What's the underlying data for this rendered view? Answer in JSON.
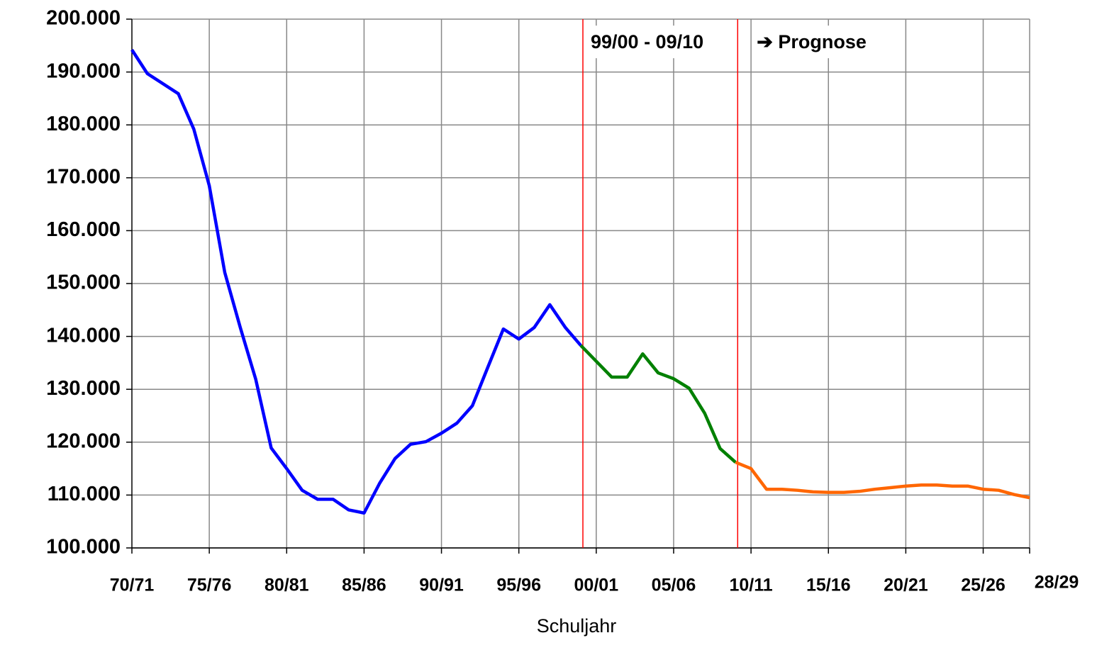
{
  "chart_data": {
    "type": "line",
    "xlabel": "Schuljahr",
    "categories": [
      "70/71",
      null,
      null,
      null,
      null,
      "75/76",
      null,
      null,
      null,
      null,
      "80/81",
      null,
      null,
      null,
      null,
      "85/86",
      null,
      null,
      null,
      null,
      "90/91",
      null,
      null,
      null,
      null,
      "95/96",
      null,
      null,
      null,
      null,
      "00/01",
      null,
      null,
      null,
      null,
      "05/06",
      null,
      null,
      null,
      null,
      "10/11",
      null,
      null,
      null,
      null,
      "15/16",
      null,
      null,
      null,
      null,
      "20/21",
      null,
      null,
      null,
      null,
      "25/26",
      null,
      null,
      "28/29"
    ],
    "series": [
      {
        "color": "#0000ff",
        "values": [
          194200,
          189700,
          187800,
          185900,
          179200,
          168500,
          152100,
          141700,
          131900,
          118900,
          115000,
          110900,
          109200,
          109200,
          107200,
          106600,
          112200,
          116900,
          119600,
          120100,
          121700,
          123600,
          126900,
          134200,
          141400,
          139500,
          141700,
          146000,
          141700,
          138300,
          null,
          null,
          null,
          null,
          null,
          null,
          null,
          null,
          null,
          null,
          null,
          null,
          null,
          null,
          null,
          null,
          null,
          null,
          null,
          null,
          null,
          null,
          null,
          null,
          null,
          null,
          null,
          null,
          null
        ]
      },
      {
        "color": "#008000",
        "values": [
          null,
          null,
          null,
          null,
          null,
          null,
          null,
          null,
          null,
          null,
          null,
          null,
          null,
          null,
          null,
          null,
          null,
          null,
          null,
          null,
          null,
          null,
          null,
          null,
          null,
          null,
          null,
          null,
          null,
          138300,
          135300,
          132300,
          132300,
          136700,
          133100,
          132000,
          130200,
          125500,
          118800,
          116200,
          null,
          null,
          null,
          null,
          null,
          null,
          null,
          null,
          null,
          null,
          null,
          null,
          null,
          null,
          null,
          null,
          null,
          null,
          null
        ]
      },
      {
        "color": "#ff6600",
        "values": [
          null,
          null,
          null,
          null,
          null,
          null,
          null,
          null,
          null,
          null,
          null,
          null,
          null,
          null,
          null,
          null,
          null,
          null,
          null,
          null,
          null,
          null,
          null,
          null,
          null,
          null,
          null,
          null,
          null,
          null,
          null,
          null,
          null,
          null,
          null,
          null,
          null,
          null,
          null,
          116200,
          115000,
          111100,
          111100,
          110900,
          110600,
          110500,
          110500,
          110700,
          111100,
          111400,
          111700,
          111900,
          111900,
          111700,
          111700,
          111100,
          110900,
          110100,
          109500
        ]
      }
    ],
    "ylim": [
      100000,
      200000
    ],
    "yticks": [
      {
        "value": 100000,
        "label": "100.000"
      },
      {
        "value": 110000,
        "label": "110.000"
      },
      {
        "value": 120000,
        "label": "120.000"
      },
      {
        "value": 130000,
        "label": "130.000"
      },
      {
        "value": 140000,
        "label": "140.000"
      },
      {
        "value": 150000,
        "label": "150.000"
      },
      {
        "value": 160000,
        "label": "160.000"
      },
      {
        "value": 170000,
        "label": "170.000"
      },
      {
        "value": 180000,
        "label": "180.000"
      },
      {
        "value": 190000,
        "label": "190.000"
      },
      {
        "value": 200000,
        "label": "200.000"
      }
    ],
    "grid": true,
    "vline_color": "#ff0000",
    "annotations": [
      "99/00 - 09/10",
      "➔ Prognose"
    ]
  }
}
